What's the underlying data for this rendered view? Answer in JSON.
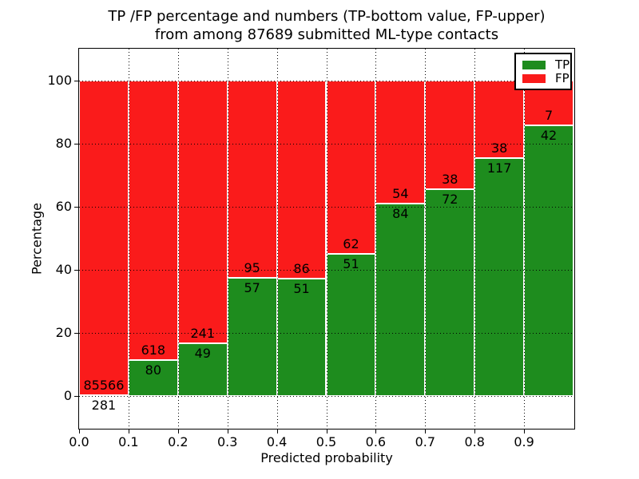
{
  "chart_data": {
    "type": "bar",
    "stacked": true,
    "title_line1": "TP /FP percentage and numbers (TP-bottom value, FP-upper)",
    "title_line2": "from among 87689 submitted ML-type contacts",
    "xlabel": "Predicted probability",
    "ylabel": "Percentage",
    "x_ticks": [
      "0.0",
      "0.1",
      "0.2",
      "0.3",
      "0.4",
      "0.5",
      "0.6",
      "0.7",
      "0.8",
      "0.9"
    ],
    "y_ticks": [
      0,
      20,
      40,
      60,
      80,
      100
    ],
    "xlim": [
      0.0,
      1.0
    ],
    "ylim": [
      -10,
      110
    ],
    "grid": true,
    "legend_position": "upper right",
    "legend": [
      {
        "label": "TP",
        "color": "#1e8c1e"
      },
      {
        "label": "FP",
        "color": "#fa1b1b"
      }
    ],
    "colors": {
      "tp": "#1e8c1e",
      "fp": "#fa1b1b",
      "bar_edge": "#ffffff"
    },
    "bins": [
      {
        "x_start": 0.0,
        "x_end": 0.1,
        "tp": 281,
        "fp": 85566
      },
      {
        "x_start": 0.1,
        "x_end": 0.2,
        "tp": 80,
        "fp": 618
      },
      {
        "x_start": 0.2,
        "x_end": 0.3,
        "tp": 49,
        "fp": 241
      },
      {
        "x_start": 0.3,
        "x_end": 0.4,
        "tp": 57,
        "fp": 95
      },
      {
        "x_start": 0.4,
        "x_end": 0.5,
        "tp": 51,
        "fp": 86
      },
      {
        "x_start": 0.5,
        "x_end": 0.6,
        "tp": 51,
        "fp": 62
      },
      {
        "x_start": 0.6,
        "x_end": 0.7,
        "tp": 84,
        "fp": 54
      },
      {
        "x_start": 0.7,
        "x_end": 0.8,
        "tp": 72,
        "fp": 38
      },
      {
        "x_start": 0.8,
        "x_end": 0.9,
        "tp": 117,
        "fp": 38
      },
      {
        "x_start": 0.9,
        "x_end": 1.0,
        "tp": 42,
        "fp": 7
      }
    ]
  }
}
